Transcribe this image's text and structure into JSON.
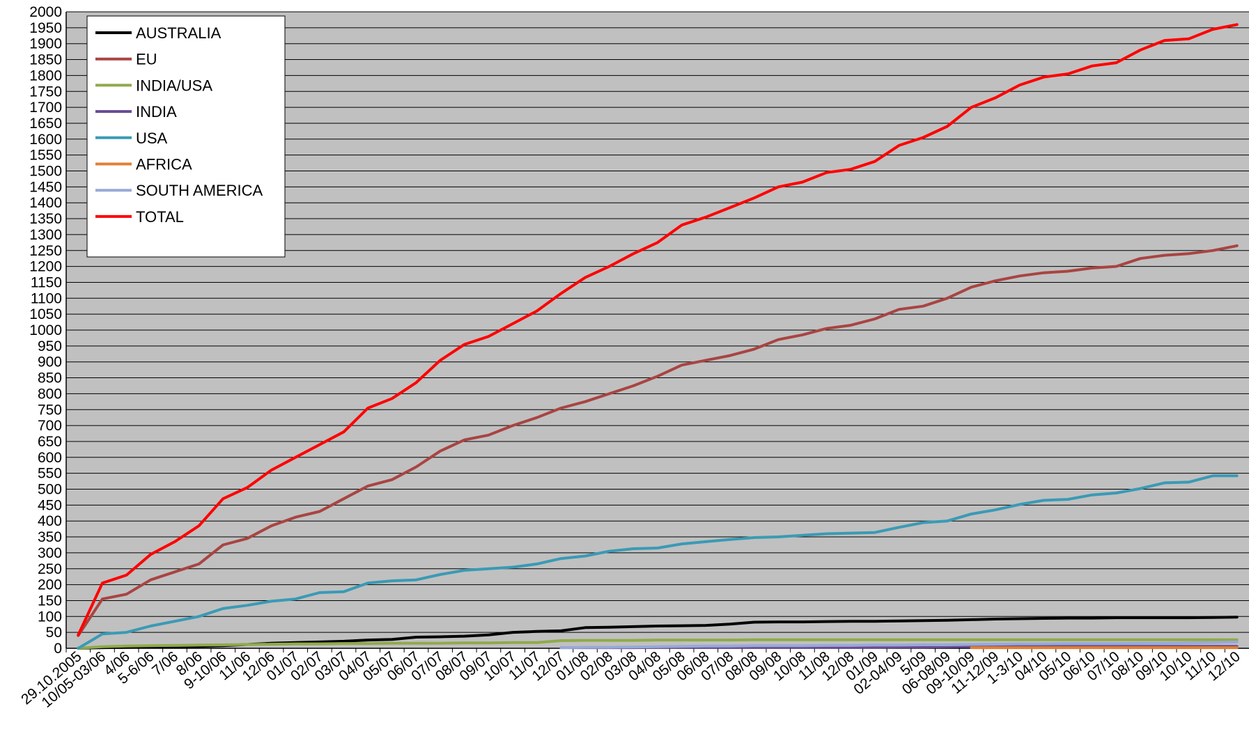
{
  "chart_data": {
    "type": "line",
    "title": "",
    "xlabel": "",
    "ylabel": "",
    "ylim": [
      0,
      2000
    ],
    "ytick_step": 50,
    "grid": "horizontal",
    "plot_background": "#c0c0c0",
    "legend_position": "top-left",
    "categories": [
      "29.10.2005",
      "10/05-03/06",
      "4/06",
      "5-6/06",
      "7/06",
      "8/06",
      "9-10/06",
      "11/06",
      "12/06",
      "01/07",
      "02/07",
      "03/07",
      "04/07",
      "05/07",
      "06/07",
      "07/07",
      "08/07",
      "09/07",
      "10/07",
      "11/07",
      "12/07",
      "01/08",
      "02/08",
      "03/08",
      "04/08",
      "05/08",
      "06/08",
      "07/08",
      "08/08",
      "09/08",
      "10/08",
      "11/08",
      "12/08",
      "01/09",
      "02-04/09",
      "5/09",
      "06-08/09",
      "09-10/09",
      "11-12/09",
      "1-3/10",
      "04/10",
      "05/10",
      "06/10",
      "07/10",
      "08/10",
      "09/10",
      "10/10",
      "11/10",
      "12/10"
    ],
    "series": [
      {
        "name": "AUSTRALIA",
        "color": "#000000",
        "values": [
          0,
          2,
          3,
          4,
          5,
          6,
          8,
          12,
          16,
          18,
          20,
          22,
          26,
          28,
          35,
          36,
          38,
          42,
          50,
          53,
          55,
          65,
          66,
          68,
          70,
          71,
          72,
          76,
          82,
          83,
          83,
          84,
          85,
          85,
          86,
          87,
          88,
          90,
          92,
          93,
          94,
          95,
          95,
          96,
          96,
          96,
          96,
          97,
          98
        ]
      },
      {
        "name": "EU",
        "color": "#a94442",
        "values": [
          40,
          155,
          170,
          215,
          240,
          265,
          325,
          345,
          385,
          412,
          430,
          470,
          510,
          530,
          570,
          620,
          655,
          670,
          700,
          725,
          755,
          775,
          800,
          825,
          855,
          890,
          905,
          920,
          940,
          970,
          985,
          1005,
          1015,
          1035,
          1065,
          1075,
          1100,
          1135,
          1155,
          1170,
          1180,
          1185,
          1195,
          1200,
          1225,
          1235,
          1240,
          1250,
          1265
        ]
      },
      {
        "name": "INDIA/USA",
        "color": "#8faa4a",
        "values": [
          0,
          5,
          7,
          8,
          9,
          10,
          11,
          12,
          13,
          14,
          14,
          15,
          15,
          16,
          16,
          16,
          17,
          17,
          18,
          18,
          24,
          25,
          25,
          25,
          26,
          26,
          26,
          26,
          27,
          27,
          27,
          27,
          27,
          27,
          27,
          27,
          27,
          27,
          27,
          27,
          27,
          27,
          27,
          27,
          27,
          27,
          27,
          27,
          27
        ]
      },
      {
        "name": "INDIA",
        "color": "#6a4a96",
        "values": [
          null,
          null,
          null,
          null,
          null,
          null,
          null,
          null,
          null,
          null,
          null,
          null,
          null,
          null,
          null,
          null,
          null,
          null,
          null,
          null,
          2,
          2,
          2,
          2,
          3,
          3,
          3,
          3,
          3,
          3,
          3,
          3,
          3,
          3,
          4,
          4,
          5,
          6,
          6,
          6,
          6,
          6,
          6,
          6,
          6,
          6,
          6,
          6,
          6
        ]
      },
      {
        "name": "USA",
        "color": "#3a9ab5",
        "values": [
          0,
          45,
          50,
          70,
          85,
          100,
          125,
          135,
          148,
          155,
          175,
          178,
          205,
          212,
          215,
          232,
          245,
          250,
          255,
          265,
          282,
          290,
          305,
          313,
          315,
          328,
          335,
          342,
          348,
          350,
          355,
          360,
          362,
          364,
          380,
          395,
          400,
          422,
          435,
          452,
          465,
          468,
          482,
          488,
          502,
          520,
          522,
          542,
          542
        ]
      },
      {
        "name": "AFRICA",
        "color": "#e07f35",
        "values": [
          null,
          null,
          null,
          null,
          null,
          null,
          null,
          null,
          null,
          null,
          null,
          null,
          null,
          null,
          null,
          null,
          null,
          null,
          null,
          null,
          null,
          null,
          null,
          null,
          null,
          null,
          null,
          null,
          null,
          null,
          null,
          null,
          null,
          null,
          null,
          null,
          null,
          2,
          2,
          2,
          2,
          2,
          2,
          2,
          2,
          2,
          2,
          2,
          2
        ]
      },
      {
        "name": "SOUTH AMERICA",
        "color": "#98a9d6",
        "values": [
          null,
          null,
          null,
          null,
          null,
          null,
          null,
          null,
          null,
          null,
          null,
          null,
          null,
          null,
          null,
          null,
          null,
          null,
          null,
          null,
          2,
          3,
          3,
          4,
          5,
          6,
          7,
          7,
          8,
          8,
          8,
          9,
          9,
          10,
          10,
          11,
          11,
          12,
          13,
          14,
          14,
          15,
          15,
          15,
          16,
          16,
          17,
          18,
          20
        ]
      },
      {
        "name": "TOTAL",
        "color": "#ff0000",
        "values": [
          42,
          205,
          230,
          295,
          335,
          385,
          470,
          505,
          560,
          600,
          640,
          680,
          755,
          785,
          835,
          905,
          955,
          980,
          1020,
          1060,
          1115,
          1165,
          1200,
          1240,
          1275,
          1330,
          1355,
          1385,
          1415,
          1450,
          1465,
          1495,
          1505,
          1530,
          1580,
          1605,
          1640,
          1700,
          1730,
          1770,
          1795,
          1805,
          1830,
          1840,
          1880,
          1910,
          1915,
          1945,
          1960
        ]
      }
    ]
  }
}
